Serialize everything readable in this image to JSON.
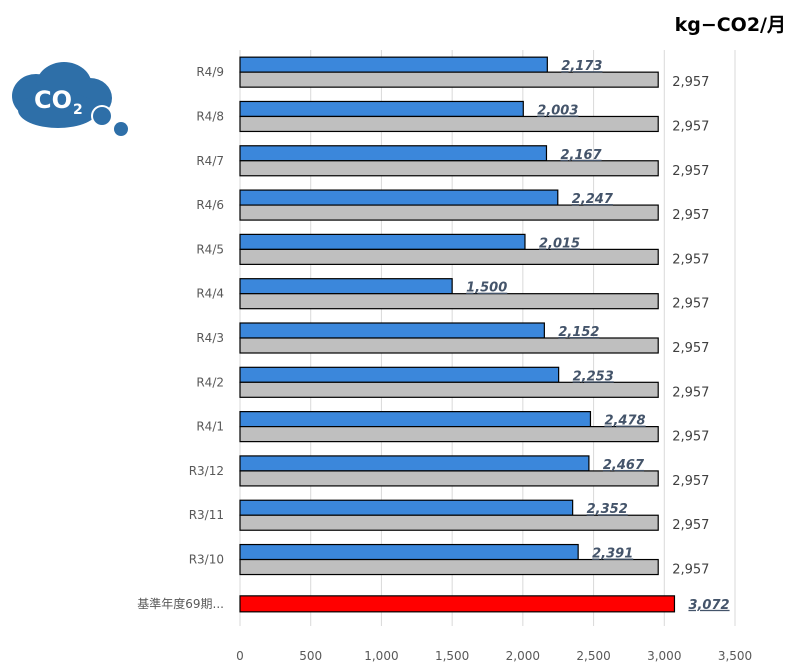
{
  "unit_label": "kg−CO2/月",
  "logo": {
    "text_main": "CO",
    "text_sub": "2",
    "color": "#2e6fa8"
  },
  "chart_data": {
    "type": "bar",
    "orientation": "horizontal",
    "categories": [
      "R4/9",
      "R4/8",
      "R4/7",
      "R4/6",
      "R4/5",
      "R4/4",
      "R4/3",
      "R4/2",
      "R4/1",
      "R3/12",
      "R3/11",
      "R3/10",
      "基準年度69期..."
    ],
    "series": [
      {
        "values": [
          2173,
          2003,
          2167,
          2247,
          2015,
          1500,
          2152,
          2253,
          2478,
          2467,
          2352,
          2391,
          null
        ],
        "color": "#3b87db",
        "labels": [
          "2,173",
          "2,003",
          "2,167",
          "2,247",
          "2,015",
          "1,500",
          "2,152",
          "2,253",
          "2,478",
          "2,467",
          "2,352",
          "2,391",
          ""
        ]
      },
      {
        "values": [
          2957,
          2957,
          2957,
          2957,
          2957,
          2957,
          2957,
          2957,
          2957,
          2957,
          2957,
          2957,
          null
        ],
        "color": "#bfbfbf",
        "labels": [
          "2,957",
          "2,957",
          "2,957",
          "2,957",
          "2,957",
          "2,957",
          "2,957",
          "2,957",
          "2,957",
          "2,957",
          "2,957",
          "2,957",
          ""
        ]
      },
      {
        "values": [
          null,
          null,
          null,
          null,
          null,
          null,
          null,
          null,
          null,
          null,
          null,
          null,
          3072
        ],
        "color": "#ff0000",
        "labels": [
          "",
          "",
          "",
          "",
          "",
          "",
          "",
          "",
          "",
          "",
          "",
          "",
          "3,072"
        ]
      }
    ],
    "xlim": [
      0,
      3500
    ],
    "xticks": [
      0,
      500,
      1000,
      1500,
      2000,
      2500,
      3000,
      3500
    ],
    "xtick_labels": [
      "0",
      "500",
      "1,000",
      "1,500",
      "2,000",
      "2,500",
      "3,000",
      "3,500"
    ],
    "grid": true
  }
}
